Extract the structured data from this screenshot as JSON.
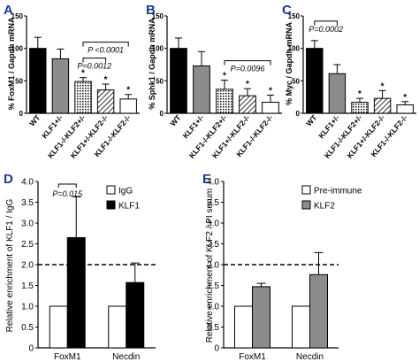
{
  "panels": [
    {
      "id": "A",
      "label": "A"
    },
    {
      "id": "B",
      "label": "B"
    },
    {
      "id": "C",
      "label": "C"
    },
    {
      "id": "D",
      "label": "D"
    },
    {
      "id": "E",
      "label": "E"
    }
  ],
  "chart_data": [
    {
      "panel": "A",
      "type": "bar",
      "ylabel": "% FoxM1 / Gapdh mRNA",
      "ylim": [
        0,
        150
      ],
      "yticks": [
        0,
        50,
        100,
        150
      ],
      "categories": [
        "WT",
        "KLF1+/-",
        "KLF1-/-KLF2+/-",
        "KLF1+/-KLF2-/-",
        "KLF1-/-KLF2-/-"
      ],
      "values": [
        100,
        84,
        49,
        36,
        22
      ],
      "errors": [
        17,
        15,
        6,
        9,
        7
      ],
      "fills": [
        "solid-black",
        "solid-gray",
        "dotted",
        "hatched",
        "white"
      ],
      "significance": [
        "",
        "",
        "*",
        "*",
        "*"
      ],
      "annotations": [
        {
          "text": "P <0.0001",
          "from": 2,
          "to": 4
        },
        {
          "text": "P=0.0012",
          "from": 2,
          "to": 3
        }
      ]
    },
    {
      "panel": "B",
      "type": "bar",
      "ylabel": "% Sphk1 / Gapdh mRNA",
      "ylim": [
        0,
        150
      ],
      "yticks": [
        0,
        50,
        100,
        150
      ],
      "categories": [
        "WT",
        "KLF1+/-",
        "KLF1-/-KLF2+/-",
        "KLF1+/-KLF2-/-",
        "KLF1-/-KLF2-/-"
      ],
      "values": [
        100,
        73,
        37,
        27,
        17
      ],
      "errors": [
        16,
        22,
        14,
        11,
        11
      ],
      "fills": [
        "solid-black",
        "solid-gray",
        "dotted",
        "hatched",
        "white"
      ],
      "significance": [
        "",
        "",
        "*",
        "*",
        "*"
      ],
      "annotations": [
        {
          "text": "P=0.0096",
          "from": 2,
          "to": 4
        }
      ]
    },
    {
      "panel": "C",
      "type": "bar",
      "ylabel": "% Myc / Gapdh mRNA",
      "ylim": [
        0,
        150
      ],
      "yticks": [
        0,
        50,
        100,
        150
      ],
      "categories": [
        "WT",
        "KLF1+/-",
        "KLF1-/-KLF2+/-",
        "KLF1+/-KLF2-/-",
        "KLF1-/-KLF2-/-"
      ],
      "values": [
        100,
        61,
        17,
        23,
        13
      ],
      "errors": [
        12,
        14,
        6,
        12,
        5
      ],
      "fills": [
        "solid-black",
        "solid-gray",
        "dotted",
        "hatched",
        "white"
      ],
      "significance": [
        "",
        "",
        "*",
        "*",
        "*"
      ],
      "annotations": [
        {
          "text": "P=0.0002",
          "from": 0,
          "to": 1
        }
      ]
    },
    {
      "panel": "D",
      "type": "bar",
      "ylabel": "Relative enrichment of KLF1 / IgG",
      "ylim": [
        0,
        4
      ],
      "yticks": [
        "0",
        "0.5",
        "1.0",
        "1.5",
        "2.0",
        "2.5",
        "3.0",
        "3.5",
        "4.0"
      ],
      "categories": [
        "FoxM1",
        "Necdin"
      ],
      "series": [
        {
          "name": "IgG",
          "values": [
            1.0,
            1.0
          ],
          "errors": [
            0,
            0
          ],
          "fill": "white"
        },
        {
          "name": "KLF1",
          "values": [
            2.65,
            1.57
          ],
          "errors": [
            0.98,
            0.47
          ],
          "fill": "black"
        }
      ],
      "reference_line": 2.0,
      "annotations": [
        {
          "text": "P=0.015",
          "category": 0
        }
      ],
      "legend": "top-right"
    },
    {
      "panel": "E",
      "type": "bar",
      "ylabel": "Relative enrichment of KLF2 / PI serum",
      "ylim": [
        0,
        4
      ],
      "yticks": [
        "0",
        "0.5",
        "1.0",
        "1.5",
        "2.0",
        "2.5",
        "3.0",
        "3.5",
        "4.0"
      ],
      "categories": [
        "FoxM1",
        "Necdin"
      ],
      "series": [
        {
          "name": "Pre-immune",
          "values": [
            1.0,
            1.0
          ],
          "errors": [
            0,
            0
          ],
          "fill": "white"
        },
        {
          "name": "KLF2",
          "values": [
            1.47,
            1.76
          ],
          "errors": [
            0.08,
            0.53
          ],
          "fill": "gray"
        }
      ],
      "reference_line": 2.0,
      "legend": "top-right"
    }
  ],
  "colors": {
    "black": "#000000",
    "gray": "#8c8c8c",
    "white": "#ffffff",
    "panel_label": "#1a3a8f"
  }
}
